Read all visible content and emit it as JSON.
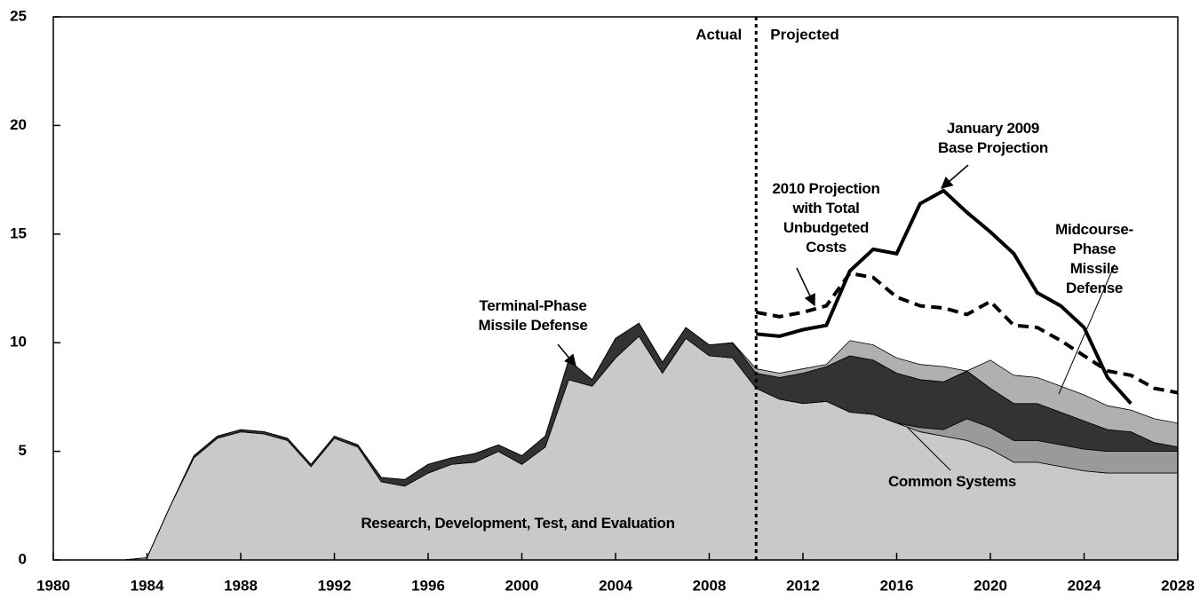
{
  "chart_data": {
    "type": "stacked-area-line",
    "x": [
      1980,
      1981,
      1982,
      1983,
      1984,
      1985,
      1986,
      1987,
      1988,
      1989,
      1990,
      1991,
      1992,
      1993,
      1994,
      1995,
      1996,
      1997,
      1998,
      1999,
      2000,
      2001,
      2002,
      2003,
      2004,
      2005,
      2006,
      2007,
      2008,
      2009,
      2010,
      2011,
      2012,
      2013,
      2014,
      2015,
      2016,
      2017,
      2018,
      2019,
      2020,
      2021,
      2022,
      2023,
      2024,
      2025,
      2026,
      2027,
      2028
    ],
    "xlim": [
      1980,
      2028
    ],
    "xticks": [
      1980,
      1984,
      1988,
      1992,
      1996,
      2000,
      2004,
      2008,
      2012,
      2016,
      2020,
      2024,
      2028
    ],
    "ylim": [
      0,
      25
    ],
    "yticks": [
      0,
      5,
      10,
      15,
      20,
      25
    ],
    "divider_x": 2010,
    "divider_labels": [
      "Actual",
      "Projected"
    ],
    "series": [
      {
        "name": "Research, Development, Test, and Evaluation",
        "kind": "area",
        "color": "#c9c9c9",
        "values": [
          0,
          0,
          0,
          0,
          0.1,
          2.5,
          4.7,
          5.6,
          5.9,
          5.8,
          5.5,
          4.3,
          5.6,
          5.2,
          3.6,
          3.4,
          4.0,
          4.4,
          4.5,
          5.0,
          4.4,
          5.2,
          8.3,
          8.0,
          9.3,
          10.3,
          8.6,
          10.2,
          9.4,
          9.3,
          7.9,
          7.4,
          7.2,
          7.3,
          6.8,
          6.7,
          6.3,
          5.9,
          5.7,
          5.5,
          5.1,
          4.5,
          4.5,
          4.3,
          4.1,
          4.0,
          4.0,
          4.0,
          4.0
        ]
      },
      {
        "name": "Common Systems",
        "kind": "area",
        "color": "#9a9a9a",
        "values": [
          0,
          0,
          0,
          0,
          0,
          0,
          0,
          0,
          0,
          0,
          0,
          0,
          0,
          0,
          0,
          0,
          0,
          0,
          0,
          0,
          0,
          0,
          0,
          0,
          0,
          0,
          0,
          0,
          0,
          0,
          0,
          0,
          0,
          0,
          0,
          0,
          0,
          0.2,
          0.3,
          1.0,
          1.0,
          1.0,
          1.0,
          1.0,
          1.0,
          1.0,
          1.0,
          1.0,
          1.0
        ]
      },
      {
        "name": "Terminal-Phase\nMissile Defense",
        "kind": "area",
        "color": "#333333",
        "values": [
          0,
          0,
          0,
          0,
          0,
          0,
          0.1,
          0.1,
          0.1,
          0.1,
          0.1,
          0.1,
          0.1,
          0.1,
          0.2,
          0.3,
          0.4,
          0.3,
          0.4,
          0.3,
          0.4,
          0.5,
          0.9,
          0.3,
          0.9,
          0.6,
          0.5,
          0.5,
          0.5,
          0.7,
          0.7,
          1.0,
          1.4,
          1.6,
          2.6,
          2.5,
          2.3,
          2.2,
          2.2,
          2.2,
          1.8,
          1.7,
          1.7,
          1.5,
          1.3,
          1.0,
          0.9,
          0.4,
          0.2
        ]
      },
      {
        "name": "Midcourse-Phase\nMissile Defense",
        "kind": "area",
        "color": "#b0b0b0",
        "values": [
          0,
          0,
          0,
          0,
          0,
          0,
          0,
          0,
          0,
          0,
          0,
          0,
          0,
          0,
          0,
          0,
          0,
          0,
          0,
          0,
          0,
          0,
          0,
          0,
          0,
          0,
          0,
          0,
          0,
          0,
          0.2,
          0.2,
          0.2,
          0.1,
          0.7,
          0.7,
          0.7,
          0.7,
          0.7,
          0.0,
          1.3,
          1.3,
          1.2,
          1.2,
          1.2,
          1.1,
          1.0,
          1.1,
          1.1
        ]
      },
      {
        "name": "January 2009\nBase Projection",
        "kind": "line",
        "color": "#000000",
        "dash": false,
        "values": [
          null,
          null,
          null,
          null,
          null,
          null,
          null,
          null,
          null,
          null,
          null,
          null,
          null,
          null,
          null,
          null,
          null,
          null,
          null,
          null,
          null,
          null,
          null,
          null,
          null,
          null,
          null,
          null,
          null,
          null,
          10.4,
          10.3,
          10.6,
          10.8,
          13.3,
          14.3,
          14.1,
          16.4,
          17.0,
          16.0,
          15.1,
          14.1,
          12.3,
          11.7,
          10.7,
          8.4,
          7.2,
          null,
          null
        ]
      },
      {
        "name": "2010 Projection\nwith Total\nUnbudgeted\nCosts",
        "kind": "line",
        "color": "#000000",
        "dash": true,
        "values": [
          null,
          null,
          null,
          null,
          null,
          null,
          null,
          null,
          null,
          null,
          null,
          null,
          null,
          null,
          null,
          null,
          null,
          null,
          null,
          null,
          null,
          null,
          null,
          null,
          null,
          null,
          null,
          null,
          null,
          null,
          11.4,
          11.2,
          11.4,
          11.7,
          13.2,
          13.0,
          12.1,
          11.7,
          11.6,
          11.3,
          11.9,
          10.8,
          10.7,
          10.1,
          9.4,
          8.7,
          8.5,
          7.9,
          7.7
        ]
      }
    ]
  }
}
